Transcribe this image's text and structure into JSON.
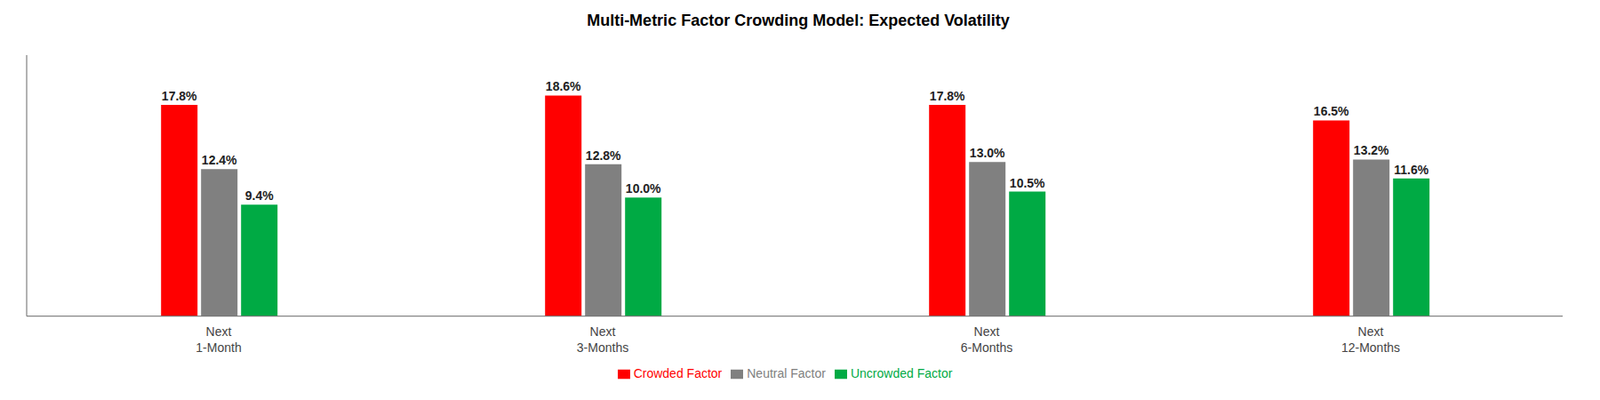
{
  "chart_data": {
    "type": "bar",
    "title": "Multi-Metric Factor Crowding Model:  Expected Volatility",
    "categories": [
      "Next\n1-Month",
      "Next\n3-Months",
      "Next\n6-Months",
      "Next\n12-Months"
    ],
    "series": [
      {
        "name": "Crowded Factor",
        "color": "#ff0000",
        "values": [
          17.8,
          18.6,
          17.8,
          16.5
        ],
        "value_labels": [
          "17.8%",
          "18.6%",
          "17.8%",
          "16.5%"
        ]
      },
      {
        "name": "Neutral Factor",
        "color": "#808080",
        "values": [
          12.4,
          12.8,
          13.0,
          13.2
        ],
        "value_labels": [
          "12.4%",
          "12.8%",
          "13.0%",
          "13.2%"
        ]
      },
      {
        "name": "Uncrowded Factor",
        "color": "#00aa44",
        "values": [
          9.4,
          10.0,
          10.5,
          11.6
        ],
        "value_labels": [
          "9.4%",
          "10.0%",
          "10.5%",
          "11.6%"
        ]
      }
    ],
    "ylim": [
      0,
      22
    ],
    "grid": false,
    "legend": "bottom",
    "data_labels": true,
    "tick_labels": "x"
  }
}
